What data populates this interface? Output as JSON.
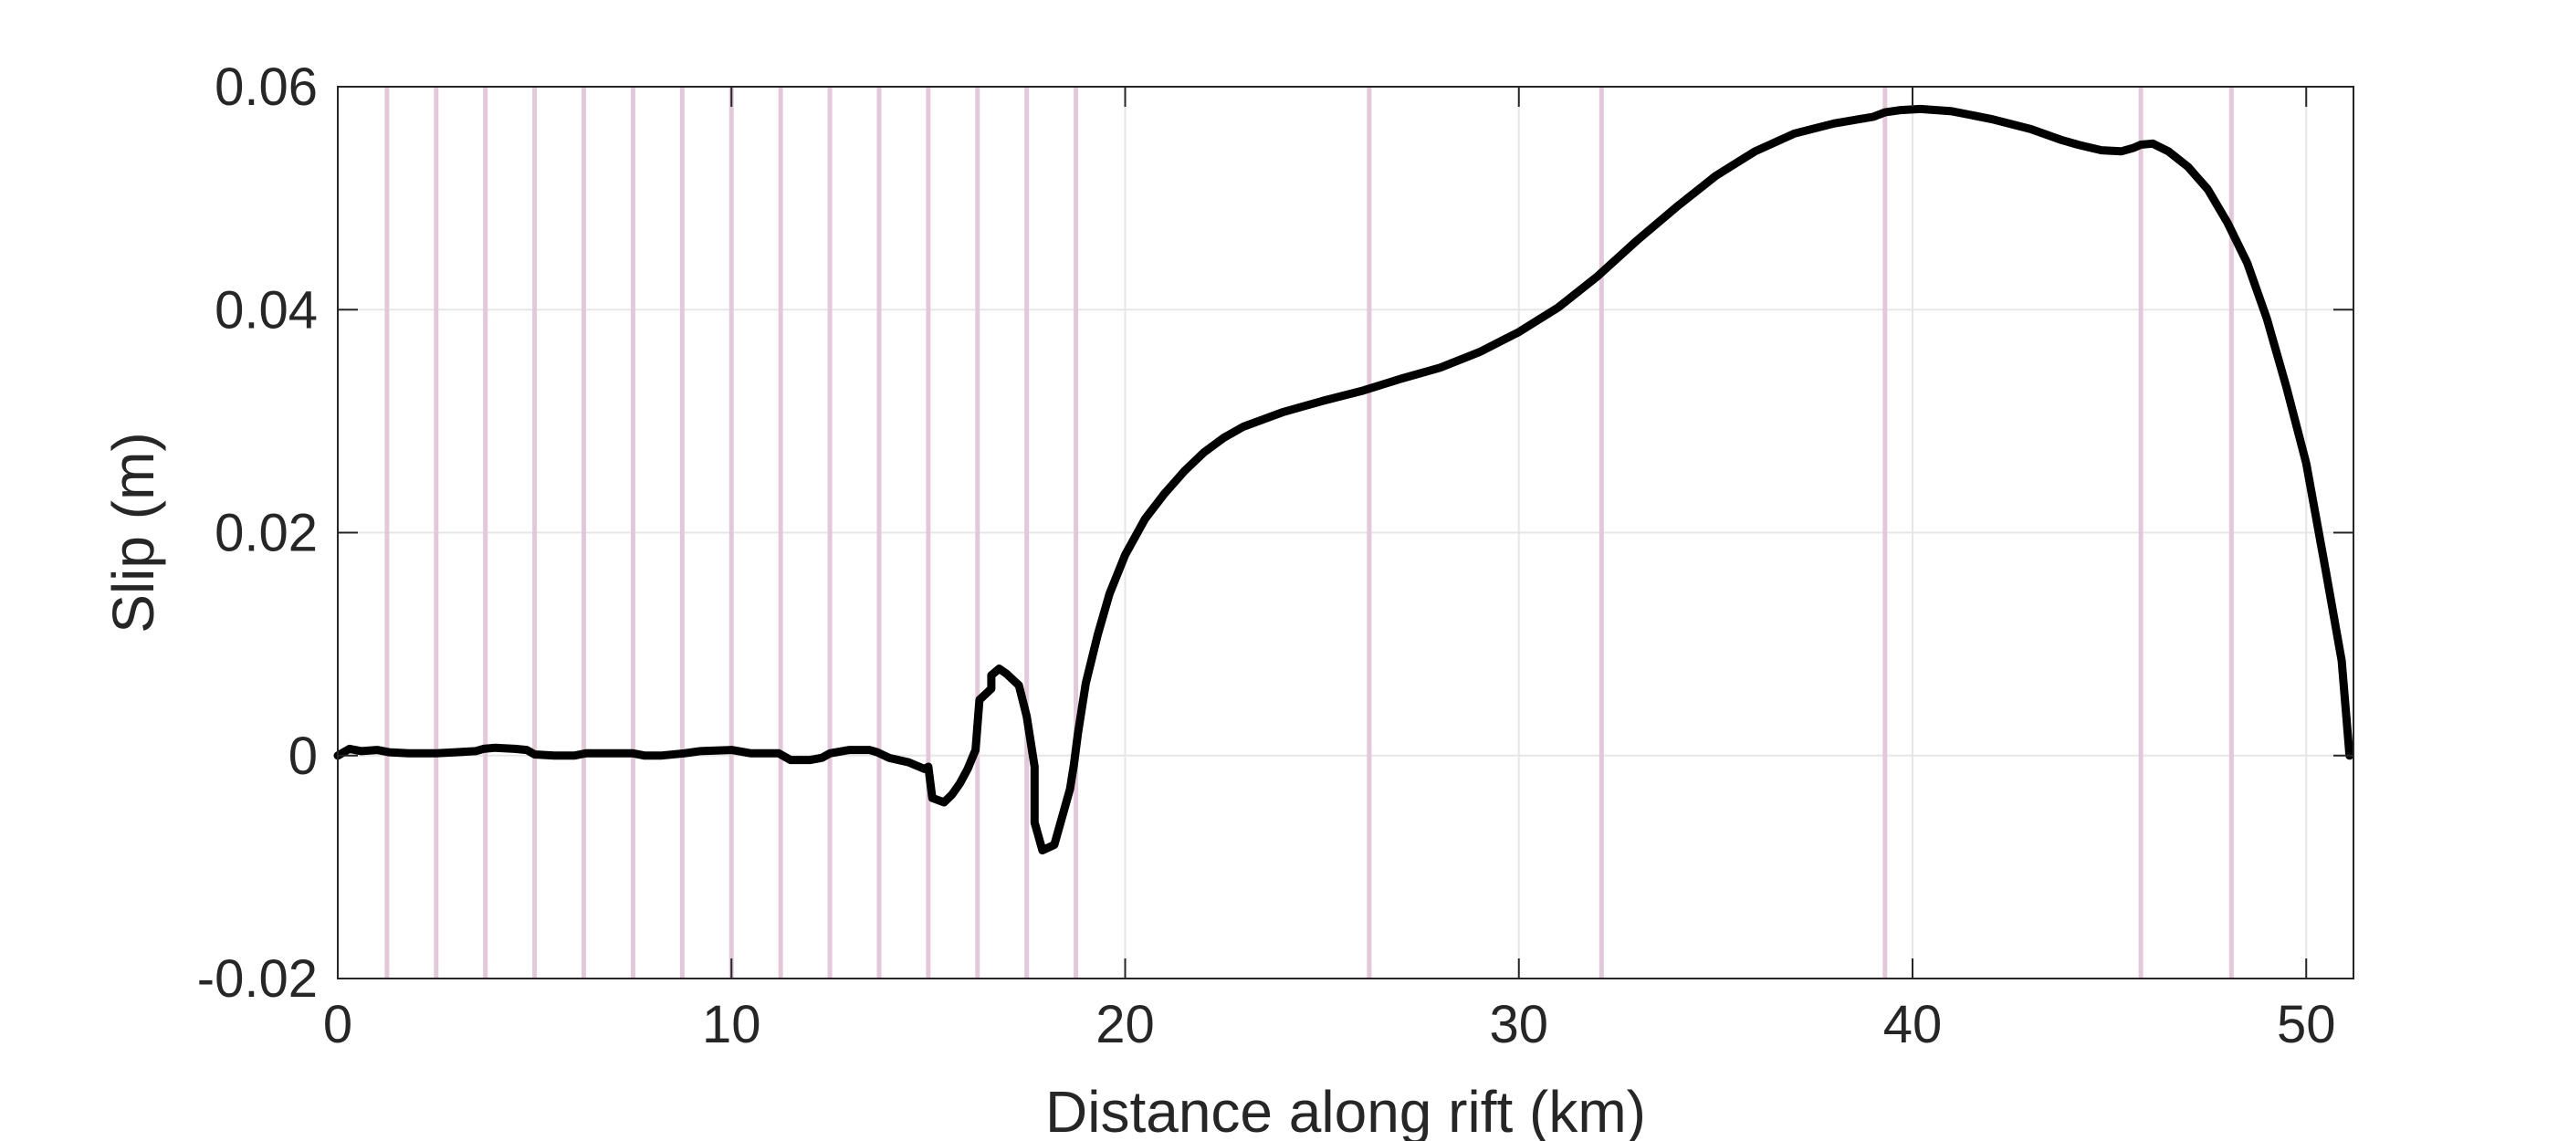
{
  "chart_data": {
    "type": "line",
    "title": "",
    "xlabel": "Distance along rift (km)",
    "ylabel": "Slip (m)",
    "xlim": [
      0,
      51.2
    ],
    "ylim": [
      -0.02,
      0.06
    ],
    "xticks": [
      0,
      10,
      20,
      30,
      40,
      50
    ],
    "xtick_labels": [
      "0",
      "10",
      "20",
      "30",
      "40",
      "50"
    ],
    "yticks": [
      -0.02,
      0,
      0.02,
      0.04,
      0.06
    ],
    "ytick_labels": [
      "-0.02",
      "0",
      "0.02",
      "0.04",
      "0.06"
    ],
    "grid": true,
    "line_color": "#000000",
    "marker_color": "#e3c8da",
    "vertical_markers": [
      1.25,
      2.5,
      3.75,
      5.0,
      6.25,
      7.5,
      8.75,
      10.0,
      11.25,
      12.5,
      13.75,
      15.0,
      16.25,
      17.5,
      18.75,
      26.2,
      32.1,
      39.3,
      45.8,
      48.1
    ],
    "series": [
      {
        "name": "Slip",
        "x": [
          0,
          0.3,
          0.6,
          1.0,
          1.3,
          1.8,
          2.5,
          3.0,
          3.5,
          3.7,
          4.0,
          4.5,
          4.8,
          5.0,
          5.5,
          6.0,
          6.3,
          6.8,
          7.5,
          7.8,
          8.2,
          8.8,
          9.2,
          10.0,
          10.5,
          11.0,
          11.2,
          11.5,
          12.0,
          12.3,
          12.5,
          13.0,
          13.5,
          13.7,
          14.0,
          14.5,
          14.9,
          15.0,
          15.1,
          15.4,
          15.6,
          15.8,
          16.0,
          16.2,
          16.3,
          16.3,
          16.6,
          16.6,
          16.8,
          17.0,
          17.3,
          17.5,
          17.5,
          17.7,
          17.7,
          17.9,
          18.2,
          18.4,
          18.6,
          18.7,
          18.8,
          19.0,
          19.3,
          19.6,
          20.0,
          20.5,
          21.0,
          21.5,
          22.0,
          22.5,
          23.0,
          24.0,
          25.0,
          26.0,
          27.0,
          28.0,
          29.0,
          30.0,
          31.0,
          32.0,
          33.0,
          34.0,
          35.0,
          36.0,
          37.0,
          38.0,
          39.0,
          39.3,
          39.7,
          40.2,
          41.0,
          42.0,
          43.0,
          43.8,
          44.2,
          44.8,
          45.3,
          45.6,
          45.8,
          46.1,
          46.5,
          47.0,
          47.5,
          48.0,
          48.5,
          49.0,
          49.5,
          50.0,
          50.5,
          50.9,
          51.1
        ],
        "y": [
          0,
          0.0006,
          0.0004,
          0.0005,
          0.0003,
          0.0002,
          0.0002,
          0.0003,
          0.0004,
          0.0006,
          0.0007,
          0.0006,
          0.0005,
          0.0001,
          0.0,
          0.0,
          0.0002,
          0.0002,
          0.0002,
          0.0,
          0.0,
          0.0002,
          0.0004,
          0.0005,
          0.0002,
          0.0002,
          0.0002,
          -0.0004,
          -0.0004,
          -0.0002,
          0.0002,
          0.0005,
          0.0005,
          0.0003,
          -0.0002,
          -0.0006,
          -0.0012,
          -0.001,
          -0.0038,
          -0.0042,
          -0.0035,
          -0.0025,
          -0.0012,
          0.0005,
          0.005,
          0.005,
          0.006,
          0.0072,
          0.0078,
          0.0073,
          0.0063,
          0.0035,
          0.0035,
          -0.001,
          -0.006,
          -0.0085,
          -0.008,
          -0.0055,
          -0.003,
          -0.0008,
          0.002,
          0.0065,
          0.0108,
          0.0145,
          0.018,
          0.0212,
          0.0235,
          0.0255,
          0.0272,
          0.0285,
          0.0295,
          0.0308,
          0.0318,
          0.0327,
          0.0338,
          0.0348,
          0.0362,
          0.038,
          0.0402,
          0.043,
          0.0462,
          0.0492,
          0.052,
          0.0542,
          0.0558,
          0.0567,
          0.0573,
          0.0577,
          0.0579,
          0.058,
          0.0578,
          0.0571,
          0.0562,
          0.0552,
          0.0548,
          0.0543,
          0.0542,
          0.0545,
          0.0548,
          0.0549,
          0.0542,
          0.0528,
          0.0508,
          0.0478,
          0.0442,
          0.0392,
          0.033,
          0.0262,
          0.0165,
          0.0085,
          0.0
        ]
      }
    ]
  }
}
